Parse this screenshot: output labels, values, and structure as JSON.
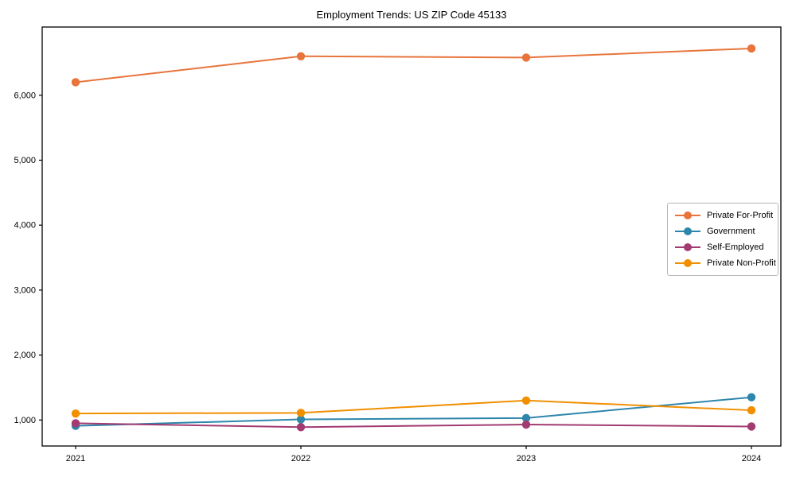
{
  "chart_data": {
    "type": "line",
    "title": "Employment Trends: US ZIP Code 45133",
    "xlabel": "",
    "ylabel": "",
    "categories": [
      "2021",
      "2022",
      "2023",
      "2024"
    ],
    "series": [
      {
        "name": "Private For-Profit",
        "color": "#E8743B",
        "values": [
          6200,
          6600,
          6580,
          6720
        ]
      },
      {
        "name": "Government",
        "color": "#2E86AB",
        "values": [
          910,
          1010,
          1030,
          1350
        ]
      },
      {
        "name": "Self-Employed",
        "color": "#A23B72",
        "values": [
          950,
          890,
          930,
          900
        ]
      },
      {
        "name": "Private Non-Profit",
        "color": "#F18F01",
        "values": [
          1100,
          1110,
          1300,
          1150
        ]
      }
    ],
    "ylim": [
      600,
      7050
    ],
    "yticks": [
      1000,
      2000,
      3000,
      4000,
      5000,
      6000
    ],
    "ytick_labels": [
      "1,000",
      "2,000",
      "3,000",
      "4,000",
      "5,000",
      "6,000"
    ],
    "grid": false,
    "legend_position": "center-right",
    "axis_color": "#000000",
    "background_color": "#ffffff"
  }
}
